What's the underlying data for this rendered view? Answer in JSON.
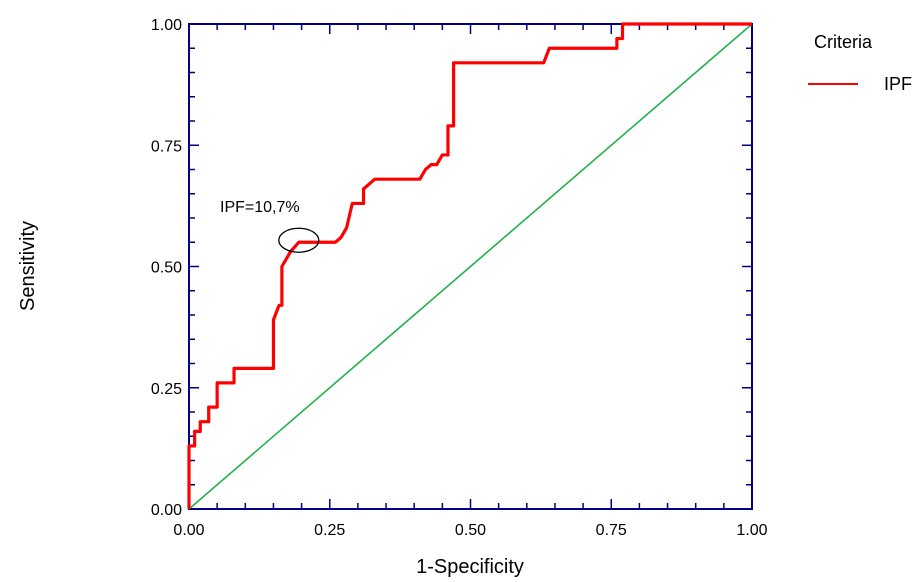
{
  "chart_data": {
    "type": "line",
    "title": "",
    "xlabel": "1-Specificity",
    "ylabel": "Sensitivity",
    "xlim": [
      0,
      1
    ],
    "ylim": [
      0,
      1
    ],
    "xticks": [
      "0.00",
      "0.25",
      "0.50",
      "0.75",
      "1.00"
    ],
    "yticks": [
      "0.00",
      "0.25",
      "0.50",
      "0.75",
      "1.00"
    ],
    "grid": false,
    "legend": {
      "title": "Criteria",
      "placement": "right",
      "entries": [
        {
          "label": "IPF",
          "color": "#ff0000"
        }
      ]
    },
    "annotation": {
      "text": "IPF=10,7%",
      "x": 0.195,
      "y": 0.55
    },
    "series": [
      {
        "name": "IPF",
        "color": "#ff0000",
        "points": [
          [
            0,
            0
          ],
          [
            0,
            0.13
          ],
          [
            0.01,
            0.13
          ],
          [
            0.01,
            0.16
          ],
          [
            0.02,
            0.16
          ],
          [
            0.02,
            0.18
          ],
          [
            0.035,
            0.18
          ],
          [
            0.035,
            0.21
          ],
          [
            0.05,
            0.21
          ],
          [
            0.05,
            0.26
          ],
          [
            0.08,
            0.26
          ],
          [
            0.08,
            0.29
          ],
          [
            0.15,
            0.29
          ],
          [
            0.15,
            0.39
          ],
          [
            0.16,
            0.42
          ],
          [
            0.165,
            0.42
          ],
          [
            0.165,
            0.5
          ],
          [
            0.18,
            0.53
          ],
          [
            0.195,
            0.55
          ],
          [
            0.26,
            0.55
          ],
          [
            0.27,
            0.56
          ],
          [
            0.28,
            0.58
          ],
          [
            0.29,
            0.63
          ],
          [
            0.31,
            0.63
          ],
          [
            0.31,
            0.66
          ],
          [
            0.33,
            0.68
          ],
          [
            0.41,
            0.68
          ],
          [
            0.42,
            0.7
          ],
          [
            0.43,
            0.71
          ],
          [
            0.44,
            0.71
          ],
          [
            0.45,
            0.73
          ],
          [
            0.46,
            0.73
          ],
          [
            0.46,
            0.79
          ],
          [
            0.47,
            0.79
          ],
          [
            0.47,
            0.92
          ],
          [
            0.63,
            0.92
          ],
          [
            0.64,
            0.95
          ],
          [
            0.76,
            0.95
          ],
          [
            0.76,
            0.97
          ],
          [
            0.77,
            0.97
          ],
          [
            0.77,
            1
          ],
          [
            1,
            1
          ]
        ]
      },
      {
        "name": "",
        "color": "#22b14c",
        "points": [
          [
            0,
            0
          ],
          [
            1,
            1
          ]
        ]
      }
    ]
  }
}
